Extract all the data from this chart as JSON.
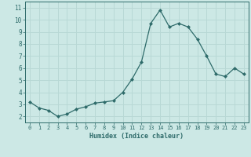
{
  "x": [
    0,
    1,
    2,
    3,
    4,
    5,
    6,
    7,
    8,
    9,
    10,
    11,
    12,
    13,
    14,
    15,
    16,
    17,
    18,
    19,
    20,
    21,
    22,
    23
  ],
  "y": [
    3.2,
    2.7,
    2.5,
    2.0,
    2.2,
    2.6,
    2.8,
    3.1,
    3.2,
    3.3,
    4.0,
    5.1,
    6.5,
    9.7,
    10.8,
    9.4,
    9.7,
    9.4,
    8.4,
    7.0,
    5.5,
    5.3,
    6.0,
    5.5
  ],
  "title": "",
  "xlabel": "Humidex (Indice chaleur)",
  "xlim": [
    -0.5,
    23.5
  ],
  "ylim": [
    1.5,
    11.5
  ],
  "yticks": [
    2,
    3,
    4,
    5,
    6,
    7,
    8,
    9,
    10,
    11
  ],
  "xticks": [
    0,
    1,
    2,
    3,
    4,
    5,
    6,
    7,
    8,
    9,
    10,
    11,
    12,
    13,
    14,
    15,
    16,
    17,
    18,
    19,
    20,
    21,
    22,
    23
  ],
  "bg_color": "#cce8e5",
  "grid_color": "#b8d8d5",
  "line_color": "#2e6b6a",
  "marker_color": "#2e6b6a"
}
